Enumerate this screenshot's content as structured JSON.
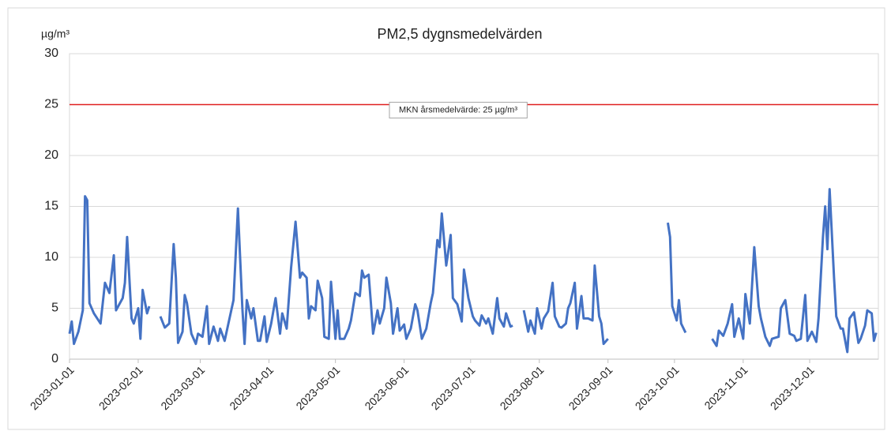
{
  "chart_data": {
    "type": "line",
    "title": "PM2,5 dygnsmedelvärden",
    "y_axis_label": "µg/m³",
    "ylim": [
      0,
      30
    ],
    "yticks": [
      0,
      5,
      10,
      15,
      20,
      25,
      30
    ],
    "xlim": [
      "2023-01-01",
      "2023-12-31"
    ],
    "xticks": [
      "2023-01-01",
      "2023-02-01",
      "2023-03-01",
      "2023-04-01",
      "2023-05-01",
      "2023-06-01",
      "2023-07-01",
      "2023-08-01",
      "2023-09-01",
      "2023-10-01",
      "2023-11-01",
      "2023-12-01"
    ],
    "grid": true,
    "reference_line": {
      "value": 25,
      "label": "MKN årsmedelvärde: 25 µg/m³",
      "color": "#e02020"
    },
    "x": [
      "2023-01-01",
      "2023-01-02",
      "2023-01-03",
      "2023-01-05",
      "2023-01-07",
      "2023-01-08",
      "2023-01-09",
      "2023-01-10",
      "2023-01-12",
      "2023-01-15",
      "2023-01-17",
      "2023-01-19",
      "2023-01-21",
      "2023-01-22",
      "2023-01-25",
      "2023-01-26",
      "2023-01-27",
      "2023-01-29",
      "2023-01-30",
      "2023-02-01",
      "2023-02-02",
      "2023-02-03",
      "2023-02-05",
      "2023-02-06",
      "2023-02-08",
      "2023-02-11",
      "2023-02-13",
      "2023-02-15",
      "2023-02-17",
      "2023-02-18",
      "2023-02-19",
      "2023-02-21",
      "2023-02-22",
      "2023-02-23",
      "2023-02-25",
      "2023-02-27",
      "2023-02-28",
      "2023-03-02",
      "2023-03-04",
      "2023-03-05",
      "2023-03-07",
      "2023-03-09",
      "2023-03-10",
      "2023-03-12",
      "2023-03-15",
      "2023-03-16",
      "2023-03-18",
      "2023-03-20",
      "2023-03-21",
      "2023-03-22",
      "2023-03-24",
      "2023-03-25",
      "2023-03-27",
      "2023-03-28",
      "2023-03-30",
      "2023-03-31",
      "2023-04-02",
      "2023-04-04",
      "2023-04-06",
      "2023-04-07",
      "2023-04-09",
      "2023-04-11",
      "2023-04-13",
      "2023-04-15",
      "2023-04-16",
      "2023-04-18",
      "2023-04-19",
      "2023-04-20",
      "2023-04-22",
      "2023-04-23",
      "2023-04-25",
      "2023-04-26",
      "2023-04-28",
      "2023-04-29",
      "2023-05-01",
      "2023-05-02",
      "2023-05-03",
      "2023-05-05",
      "2023-05-07",
      "2023-05-08",
      "2023-05-10",
      "2023-05-12",
      "2023-05-13",
      "2023-05-14",
      "2023-05-16",
      "2023-05-17",
      "2023-05-18",
      "2023-05-20",
      "2023-05-21",
      "2023-05-23",
      "2023-05-24",
      "2023-05-26",
      "2023-05-27",
      "2023-05-29",
      "2023-05-30",
      "2023-06-01",
      "2023-06-02",
      "2023-06-04",
      "2023-06-06",
      "2023-06-07",
      "2023-06-09",
      "2023-06-11",
      "2023-06-13",
      "2023-06-14",
      "2023-06-16",
      "2023-06-17",
      "2023-06-18",
      "2023-06-20",
      "2023-06-22",
      "2023-06-23",
      "2023-06-25",
      "2023-06-27",
      "2023-06-28",
      "2023-06-30",
      "2023-07-02",
      "2023-07-03",
      "2023-07-05",
      "2023-07-06",
      "2023-07-08",
      "2023-07-09",
      "2023-07-11",
      "2023-07-13",
      "2023-07-14",
      "2023-07-16",
      "2023-07-17",
      "2023-07-19",
      "2023-07-20",
      "2023-07-22",
      "2023-07-25",
      "2023-07-27",
      "2023-07-28",
      "2023-07-30",
      "2023-07-31",
      "2023-08-02",
      "2023-08-03",
      "2023-08-05",
      "2023-08-07",
      "2023-08-08",
      "2023-08-10",
      "2023-08-11",
      "2023-08-13",
      "2023-08-14",
      "2023-08-15",
      "2023-08-17",
      "2023-08-18",
      "2023-08-20",
      "2023-08-21",
      "2023-08-23",
      "2023-08-25",
      "2023-08-26",
      "2023-08-28",
      "2023-08-29",
      "2023-08-30",
      "2023-09-01",
      "2023-09-08",
      "2023-09-28",
      "2023-09-29",
      "2023-09-30",
      "2023-10-02",
      "2023-10-03",
      "2023-10-04",
      "2023-10-06",
      "2023-10-12",
      "2023-10-18",
      "2023-10-20",
      "2023-10-21",
      "2023-10-23",
      "2023-10-25",
      "2023-10-27",
      "2023-10-28",
      "2023-10-30",
      "2023-11-01",
      "2023-11-02",
      "2023-11-04",
      "2023-11-06",
      "2023-11-08",
      "2023-11-09",
      "2023-11-11",
      "2023-11-13",
      "2023-11-14",
      "2023-11-17",
      "2023-11-18",
      "2023-11-20",
      "2023-11-22",
      "2023-11-24",
      "2023-11-25",
      "2023-11-27",
      "2023-11-29",
      "2023-11-30",
      "2023-12-02",
      "2023-12-04",
      "2023-12-05",
      "2023-12-07",
      "2023-12-08",
      "2023-12-09",
      "2023-12-10",
      "2023-12-12",
      "2023-12-13",
      "2023-12-15",
      "2023-12-16",
      "2023-12-18",
      "2023-12-19",
      "2023-12-21",
      "2023-12-23",
      "2023-12-24",
      "2023-12-26",
      "2023-12-27",
      "2023-12-29",
      "2023-12-30",
      "2023-12-31"
    ],
    "series": [
      {
        "color": "#4472c4",
        "values": [
          2.5,
          3.7,
          1.5,
          2.7,
          4.8,
          16,
          15.6,
          5.5,
          4.5,
          3.5,
          7.5,
          6.5,
          10.2,
          4.8,
          6,
          7.5,
          12,
          4,
          3.5,
          5,
          2,
          6.8,
          4.5,
          5.2,
          null,
          4.2,
          3.1,
          3.5,
          11.3,
          8,
          1.6,
          2.7,
          6.3,
          5.5,
          2.5,
          1.5,
          2.5,
          2.2,
          5.2,
          1.5,
          3.2,
          1.8,
          3,
          1.8,
          4.8,
          5.8,
          14.8,
          5,
          1.5,
          5.8,
          4,
          5,
          1.8,
          1.8,
          4.2,
          1.7,
          3.5,
          6,
          2.5,
          4.5,
          3,
          9,
          13.5,
          8,
          8.5,
          8,
          4,
          5.2,
          4.8,
          7.7,
          6,
          2.2,
          2,
          7.6,
          2,
          4.8,
          2,
          2,
          3,
          3.8,
          6.5,
          6.2,
          8.7,
          8,
          8.3,
          5.5,
          2.5,
          4.8,
          3.5,
          5,
          8,
          5.5,
          2.5,
          5,
          2.8,
          3.4,
          2,
          3,
          5.4,
          4.8,
          2,
          3,
          5.5,
          6.5,
          11.7,
          11,
          14.3,
          9.2,
          12.2,
          6,
          5.4,
          3.7,
          8.8,
          6,
          4.2,
          3.8,
          3.3,
          4.3,
          3.5,
          4,
          2.5,
          6,
          4,
          3.2,
          4.5,
          3.2,
          3.3,
          null,
          4.8,
          2.7,
          3.8,
          2.5,
          5,
          3,
          4,
          4.7,
          7.5,
          4.2,
          3.2,
          3.1,
          3.5,
          5,
          5.5,
          7.5,
          3,
          6.2,
          4,
          4,
          3.8,
          9.2,
          4.2,
          3.5,
          1.5,
          2,
          null,
          13.4,
          12,
          5.2,
          3.8,
          5.8,
          3.5,
          2.6,
          null,
          2,
          1.3,
          2.8,
          2.3,
          3.5,
          5.4,
          2.2,
          4,
          2,
          6.4,
          3.5,
          11,
          5.2,
          4,
          2.2,
          1.3,
          2,
          2.2,
          5,
          5.8,
          2.5,
          2.3,
          1.8,
          2,
          6.3,
          1.8,
          2.7,
          1.7,
          4,
          12,
          15,
          10.8,
          16.7,
          8,
          4.2,
          3,
          3,
          0.7,
          4,
          4.6,
          1.6,
          2,
          3.3,
          4.8,
          4.5,
          1.8,
          2.6
        ]
      }
    ]
  }
}
